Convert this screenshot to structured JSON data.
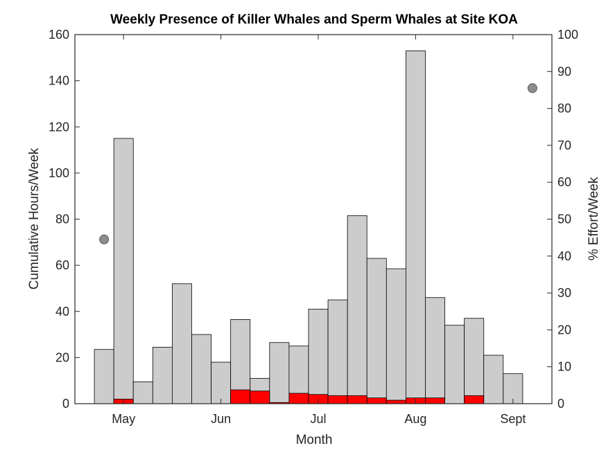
{
  "chart_data": {
    "type": "bar",
    "title": "Weekly Presence of Killer Whales and Sperm Whales at Site KOA",
    "xlabel": "Month",
    "ylabel_left": "Cumulative Hours/Week",
    "ylabel_right": "% Effort/Week",
    "ylim_left": [
      0,
      160
    ],
    "ylim_right": [
      0,
      100
    ],
    "yticks_left": [
      0,
      20,
      40,
      60,
      80,
      100,
      120,
      140,
      160
    ],
    "yticks_right": [
      0,
      10,
      20,
      30,
      40,
      50,
      60,
      70,
      80,
      90,
      100
    ],
    "month_ticks": [
      {
        "label": "May",
        "week": 1.5
      },
      {
        "label": "Jun",
        "week": 6.5
      },
      {
        "label": "Jul",
        "week": 11.5
      },
      {
        "label": "Aug",
        "week": 16.5
      },
      {
        "label": "Sept",
        "week": 21.5
      }
    ],
    "xlim_weeks": [
      -1,
      23.5
    ],
    "grid": false,
    "colors": {
      "sperm_whale_bars": "#cccccc",
      "killer_whale_bars": "#ff0000",
      "effort_markers": "#8c8c8c",
      "bar_edge": "#000000"
    },
    "series": [
      {
        "values": [
          23.5,
          115,
          9.5,
          24.5,
          52,
          30,
          18,
          36.5,
          11,
          26.5,
          25,
          41,
          45,
          81.5,
          63,
          58.5,
          153,
          46,
          34,
          37,
          21,
          13
        ]
      },
      {
        "values": [
          0,
          2,
          0,
          0,
          0,
          0,
          0,
          6,
          5.5,
          0.5,
          4.5,
          4,
          3.5,
          3.5,
          2.5,
          1.5,
          2.5,
          2.5,
          0,
          3.5,
          0,
          0
        ]
      }
    ],
    "effort_points": [
      {
        "week": 0.5,
        "percent": 44.5
      },
      {
        "week": 22.5,
        "percent": 85.5
      }
    ]
  }
}
